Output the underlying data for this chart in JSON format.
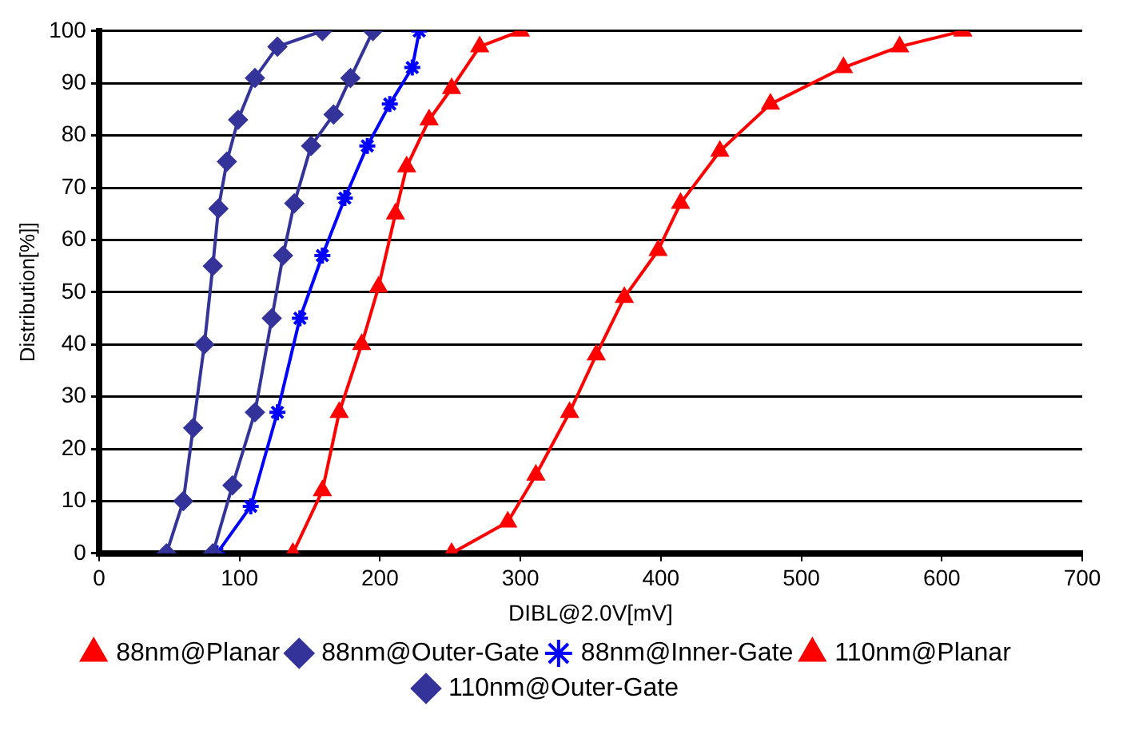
{
  "chart_data": {
    "type": "line",
    "xlabel": "DIBL@2.0V[mV]",
    "ylabel": "Distribution[%]]",
    "xlim": [
      0,
      700
    ],
    "xticks": [
      0,
      100,
      200,
      300,
      400,
      500,
      600,
      700
    ],
    "ylim": [
      0,
      100
    ],
    "yticks": [
      0,
      10,
      20,
      30,
      40,
      50,
      60,
      70,
      80,
      90,
      100
    ],
    "grid": "y",
    "legend": "bottom",
    "series": [
      {
        "name": "88nm@Planar",
        "color": "#ff0000",
        "marker": "triangle",
        "x": [
          251,
          291,
          311,
          335,
          354,
          374,
          398,
          414,
          442,
          478,
          530,
          570,
          615
        ],
        "values": [
          0,
          6,
          15,
          27,
          38,
          49,
          58,
          67,
          77,
          86,
          93,
          97,
          100
        ]
      },
      {
        "name": "88nm@Outer-Gate",
        "color": "#333399",
        "marker": "diamond",
        "x": [
          81,
          95,
          111,
          123,
          131,
          139,
          151,
          167,
          179,
          195
        ],
        "values": [
          0,
          13,
          27,
          45,
          57,
          67,
          78,
          84,
          91,
          100
        ]
      },
      {
        "name": "88nm@Inner-Gate",
        "color": "#0000ff",
        "marker": "cross",
        "x": [
          84,
          108,
          127,
          143,
          159,
          175,
          191,
          207,
          223,
          228
        ],
        "values": [
          0,
          9,
          27,
          45,
          57,
          68,
          78,
          86,
          93,
          100
        ]
      },
      {
        "name": "110nm@Planar",
        "color": "#ff0000",
        "marker": "triangle",
        "x": [
          138,
          159,
          171,
          187,
          199,
          211,
          219,
          235,
          251,
          271,
          300
        ],
        "values": [
          0,
          12,
          27,
          40,
          51,
          65,
          74,
          83,
          89,
          97,
          100
        ]
      },
      {
        "name": "110nm@Outer-Gate",
        "color": "#333399",
        "marker": "diamond",
        "x": [
          48,
          60,
          67,
          75,
          81,
          85,
          91,
          99,
          111,
          127,
          159
        ],
        "values": [
          0,
          10,
          24,
          40,
          55,
          66,
          75,
          83,
          91,
          97,
          100
        ]
      }
    ]
  }
}
